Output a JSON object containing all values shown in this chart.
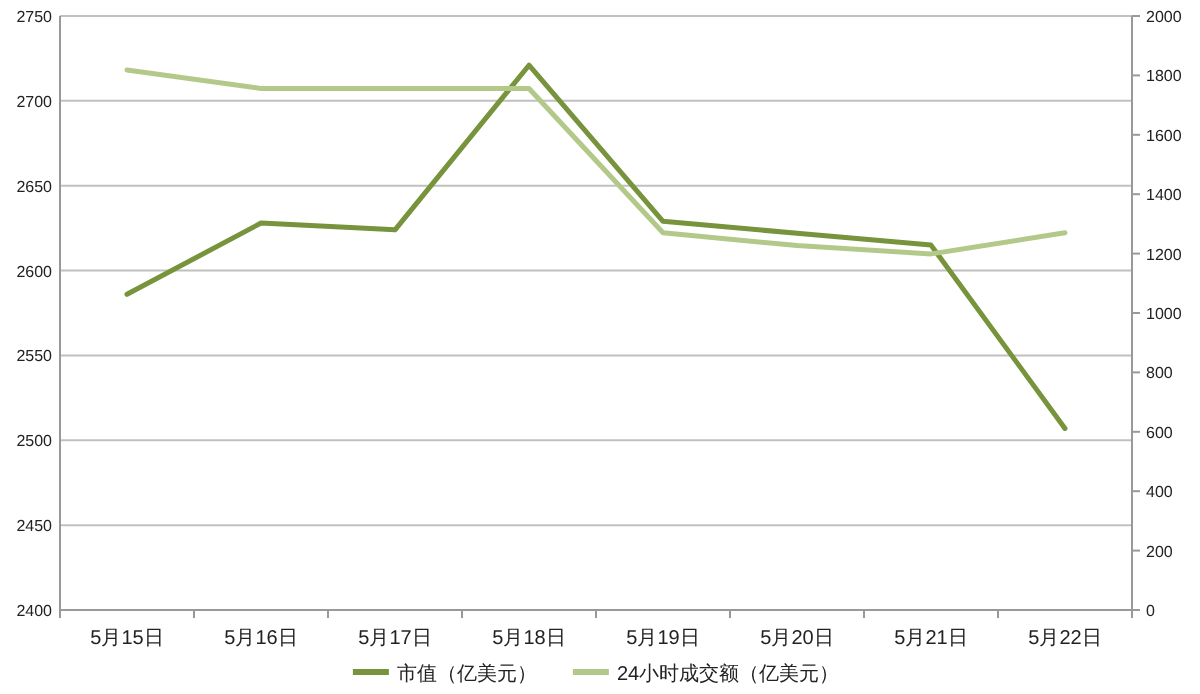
{
  "chart_data": {
    "type": "line",
    "categories": [
      "5月15日",
      "5月16日",
      "5月17日",
      "5月18日",
      "5月19日",
      "5月20日",
      "5月21日",
      "5月22日"
    ],
    "series": [
      {
        "name": "市值（亿美元）",
        "color": "#77933c",
        "values": [
          2586,
          2628,
          2624,
          2721,
          2629,
          2622,
          2615,
          2507
        ]
      },
      {
        "name": "24小时成交额（亿美元）",
        "color": "#b3c98a",
        "axis": "y2",
        "values": [
          1818,
          1756,
          1756,
          1756,
          1270,
          1227,
          1199,
          1270
        ]
      }
    ],
    "ylim": [
      2400,
      2750
    ],
    "yticks": [
      2400,
      2450,
      2500,
      2550,
      2600,
      2650,
      2700,
      2750
    ],
    "y2lim": [
      0,
      2000
    ],
    "y2ticks": [
      0,
      200,
      400,
      600,
      800,
      1000,
      1200,
      1400,
      1600,
      1800,
      2000
    ],
    "grid": "y",
    "legend": "bottom",
    "marker": "none",
    "line_style": "solid"
  }
}
